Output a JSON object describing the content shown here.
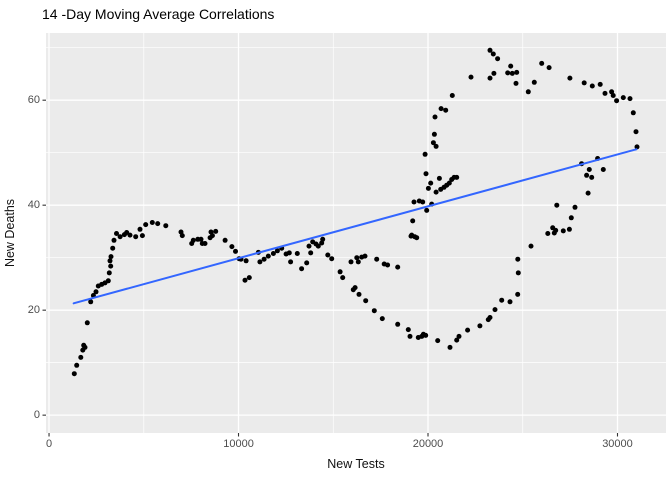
{
  "figure": {
    "title": "14 -Day Moving Average Correlations"
  },
  "chart_data": {
    "type": "scatter",
    "title": "14 -Day Moving Average Correlations",
    "xlabel": "New Tests",
    "ylabel": "New Deaths",
    "x_ticks": [
      0,
      10000,
      20000,
      30000
    ],
    "y_ticks": [
      0,
      20,
      40,
      60
    ],
    "x_minor_ticks": [
      5000,
      15000,
      25000
    ],
    "y_minor_ticks": [
      10,
      30,
      50,
      70
    ],
    "xlim": [
      -160,
      32560
    ],
    "ylim": [
      -3.4,
      72.8
    ],
    "grid": true,
    "legend": "none",
    "colors": {
      "panel_bg": "#EBEBEB",
      "grid_major": "#FFFFFF",
      "grid_minor": "#FFFFFF",
      "point": "#000000",
      "trend_line": "#3366FF",
      "tick_mark": "#333333",
      "tick_text": "#4D4D4D",
      "axis_title_text": "#111111",
      "title_text": "#000000"
    },
    "trend": {
      "model": "linear",
      "x1": 1300,
      "y1": 21.3,
      "x2": 31000,
      "y2": 50.65
    },
    "points": [
      [
        1335,
        7.9
      ],
      [
        1460,
        9.5
      ],
      [
        1675,
        11.0
      ],
      [
        1780,
        12.4
      ],
      [
        1830,
        13.3
      ],
      [
        1900,
        12.9
      ],
      [
        2020,
        17.6
      ],
      [
        2200,
        21.6
      ],
      [
        2340,
        22.8
      ],
      [
        2480,
        23.5
      ],
      [
        2600,
        24.6
      ],
      [
        2780,
        24.9
      ],
      [
        2955,
        25.2
      ],
      [
        3130,
        25.6
      ],
      [
        3180,
        27.1
      ],
      [
        3220,
        29.4
      ],
      [
        3255,
        28.4
      ],
      [
        3270,
        30.2
      ],
      [
        3360,
        31.8
      ],
      [
        3430,
        33.3
      ],
      [
        3560,
        34.6
      ],
      [
        3750,
        34.0
      ],
      [
        3975,
        34.4
      ],
      [
        4100,
        34.8
      ],
      [
        4275,
        34.3
      ],
      [
        4575,
        34.0
      ],
      [
        4800,
        35.4
      ],
      [
        4925,
        34.2
      ],
      [
        5100,
        36.3
      ],
      [
        5450,
        36.7
      ],
      [
        5735,
        36.5
      ],
      [
        6160,
        36.1
      ],
      [
        6965,
        34.9
      ],
      [
        7035,
        34.2
      ],
      [
        7530,
        32.7
      ],
      [
        7615,
        33.3
      ],
      [
        7850,
        33.5
      ],
      [
        8020,
        33.5
      ],
      [
        8090,
        32.7
      ],
      [
        8230,
        32.7
      ],
      [
        8500,
        33.8
      ],
      [
        8550,
        34.9
      ],
      [
        8620,
        34.2
      ],
      [
        8795,
        35.0
      ],
      [
        9290,
        33.3
      ],
      [
        9650,
        32.1
      ],
      [
        9840,
        31.2
      ],
      [
        10030,
        29.8
      ],
      [
        10130,
        29.7
      ],
      [
        10340,
        25.7
      ],
      [
        10400,
        29.4
      ],
      [
        10570,
        26.2
      ],
      [
        11050,
        31.0
      ],
      [
        11130,
        29.2
      ],
      [
        11350,
        29.7
      ],
      [
        11570,
        30.3
      ],
      [
        11840,
        30.8
      ],
      [
        12050,
        31.3
      ],
      [
        12280,
        31.8
      ],
      [
        12510,
        30.7
      ],
      [
        12680,
        30.9
      ],
      [
        12750,
        29.2
      ],
      [
        13100,
        30.8
      ],
      [
        13330,
        27.9
      ],
      [
        13600,
        29.0
      ],
      [
        13720,
        32.2
      ],
      [
        13810,
        30.9
      ],
      [
        13915,
        33.0
      ],
      [
        14090,
        32.6
      ],
      [
        14210,
        32.2
      ],
      [
        14390,
        32.8
      ],
      [
        14445,
        33.5
      ],
      [
        14710,
        30.5
      ],
      [
        14920,
        29.8
      ],
      [
        15360,
        27.3
      ],
      [
        15500,
        26.2
      ],
      [
        15935,
        29.2
      ],
      [
        16060,
        23.9
      ],
      [
        16240,
        30.0
      ],
      [
        16320,
        29.2
      ],
      [
        16500,
        30.1
      ],
      [
        16675,
        30.3
      ],
      [
        17290,
        29.7
      ],
      [
        17690,
        28.8
      ],
      [
        17870,
        28.6
      ],
      [
        18400,
        28.2
      ],
      [
        16150,
        24.3
      ],
      [
        16360,
        23.0
      ],
      [
        16710,
        21.8
      ],
      [
        17165,
        19.9
      ],
      [
        17590,
        18.4
      ],
      [
        18400,
        17.3
      ],
      [
        18960,
        16.3
      ],
      [
        19050,
        15.0
      ],
      [
        19490,
        14.8
      ],
      [
        19670,
        15.0
      ],
      [
        19755,
        15.4
      ],
      [
        19880,
        15.2
      ],
      [
        20510,
        14.2
      ],
      [
        21160,
        12.9
      ],
      [
        21515,
        14.3
      ],
      [
        21635,
        15.0
      ],
      [
        22090,
        16.2
      ],
      [
        22740,
        17.0
      ],
      [
        23180,
        18.2
      ],
      [
        23270,
        18.6
      ],
      [
        23535,
        20.1
      ],
      [
        23890,
        21.9
      ],
      [
        24325,
        21.6
      ],
      [
        24735,
        23.0
      ],
      [
        24765,
        27.1
      ],
      [
        24740,
        29.7
      ],
      [
        25435,
        32.2
      ],
      [
        19100,
        34.1
      ],
      [
        19140,
        34.3
      ],
      [
        19300,
        34.0
      ],
      [
        19405,
        33.8
      ],
      [
        19190,
        37.0
      ],
      [
        19930,
        39.0
      ],
      [
        19260,
        40.6
      ],
      [
        19540,
        40.8
      ],
      [
        19720,
        40.6
      ],
      [
        20195,
        40.2
      ],
      [
        20020,
        43.2
      ],
      [
        20140,
        44.2
      ],
      [
        20425,
        42.5
      ],
      [
        20670,
        43.0
      ],
      [
        20845,
        43.4
      ],
      [
        20985,
        43.8
      ],
      [
        21125,
        44.2
      ],
      [
        21250,
        44.9
      ],
      [
        21375,
        45.3
      ],
      [
        21515,
        45.3
      ],
      [
        19895,
        46.0
      ],
      [
        20600,
        45.1
      ],
      [
        19845,
        49.7
      ],
      [
        20285,
        51.9
      ],
      [
        20425,
        51.2
      ],
      [
        20335,
        53.5
      ],
      [
        20370,
        56.8
      ],
      [
        20690,
        58.4
      ],
      [
        20935,
        58.1
      ],
      [
        21280,
        60.9
      ],
      [
        22270,
        64.4
      ],
      [
        23270,
        64.2
      ],
      [
        23270,
        69.5
      ],
      [
        23445,
        68.8
      ],
      [
        23675,
        67.9
      ],
      [
        23480,
        65.1
      ],
      [
        24205,
        65.2
      ],
      [
        24450,
        65.1
      ],
      [
        24680,
        65.3
      ],
      [
        24365,
        66.5
      ],
      [
        24645,
        63.2
      ],
      [
        25295,
        61.6
      ],
      [
        25610,
        63.4
      ],
      [
        26000,
        67.0
      ],
      [
        26390,
        66.2
      ],
      [
        27490,
        64.2
      ],
      [
        28245,
        63.3
      ],
      [
        28670,
        62.7
      ],
      [
        29090,
        63.0
      ],
      [
        29340,
        61.3
      ],
      [
        29690,
        61.6
      ],
      [
        29775,
        60.9
      ],
      [
        29955,
        59.9
      ],
      [
        30305,
        60.5
      ],
      [
        30660,
        60.3
      ],
      [
        30835,
        57.6
      ],
      [
        30975,
        54.0
      ],
      [
        31030,
        51.1
      ],
      [
        26320,
        34.6
      ],
      [
        26580,
        35.7
      ],
      [
        26665,
        34.7
      ],
      [
        26740,
        35.2
      ],
      [
        27140,
        35.1
      ],
      [
        27460,
        35.4
      ],
      [
        26795,
        40.0
      ],
      [
        27560,
        37.6
      ],
      [
        27755,
        39.6
      ],
      [
        28105,
        47.9
      ],
      [
        28370,
        45.7
      ],
      [
        28450,
        42.3
      ],
      [
        28510,
        46.8
      ],
      [
        28640,
        45.3
      ],
      [
        28950,
        48.9
      ],
      [
        29250,
        46.8
      ]
    ]
  }
}
